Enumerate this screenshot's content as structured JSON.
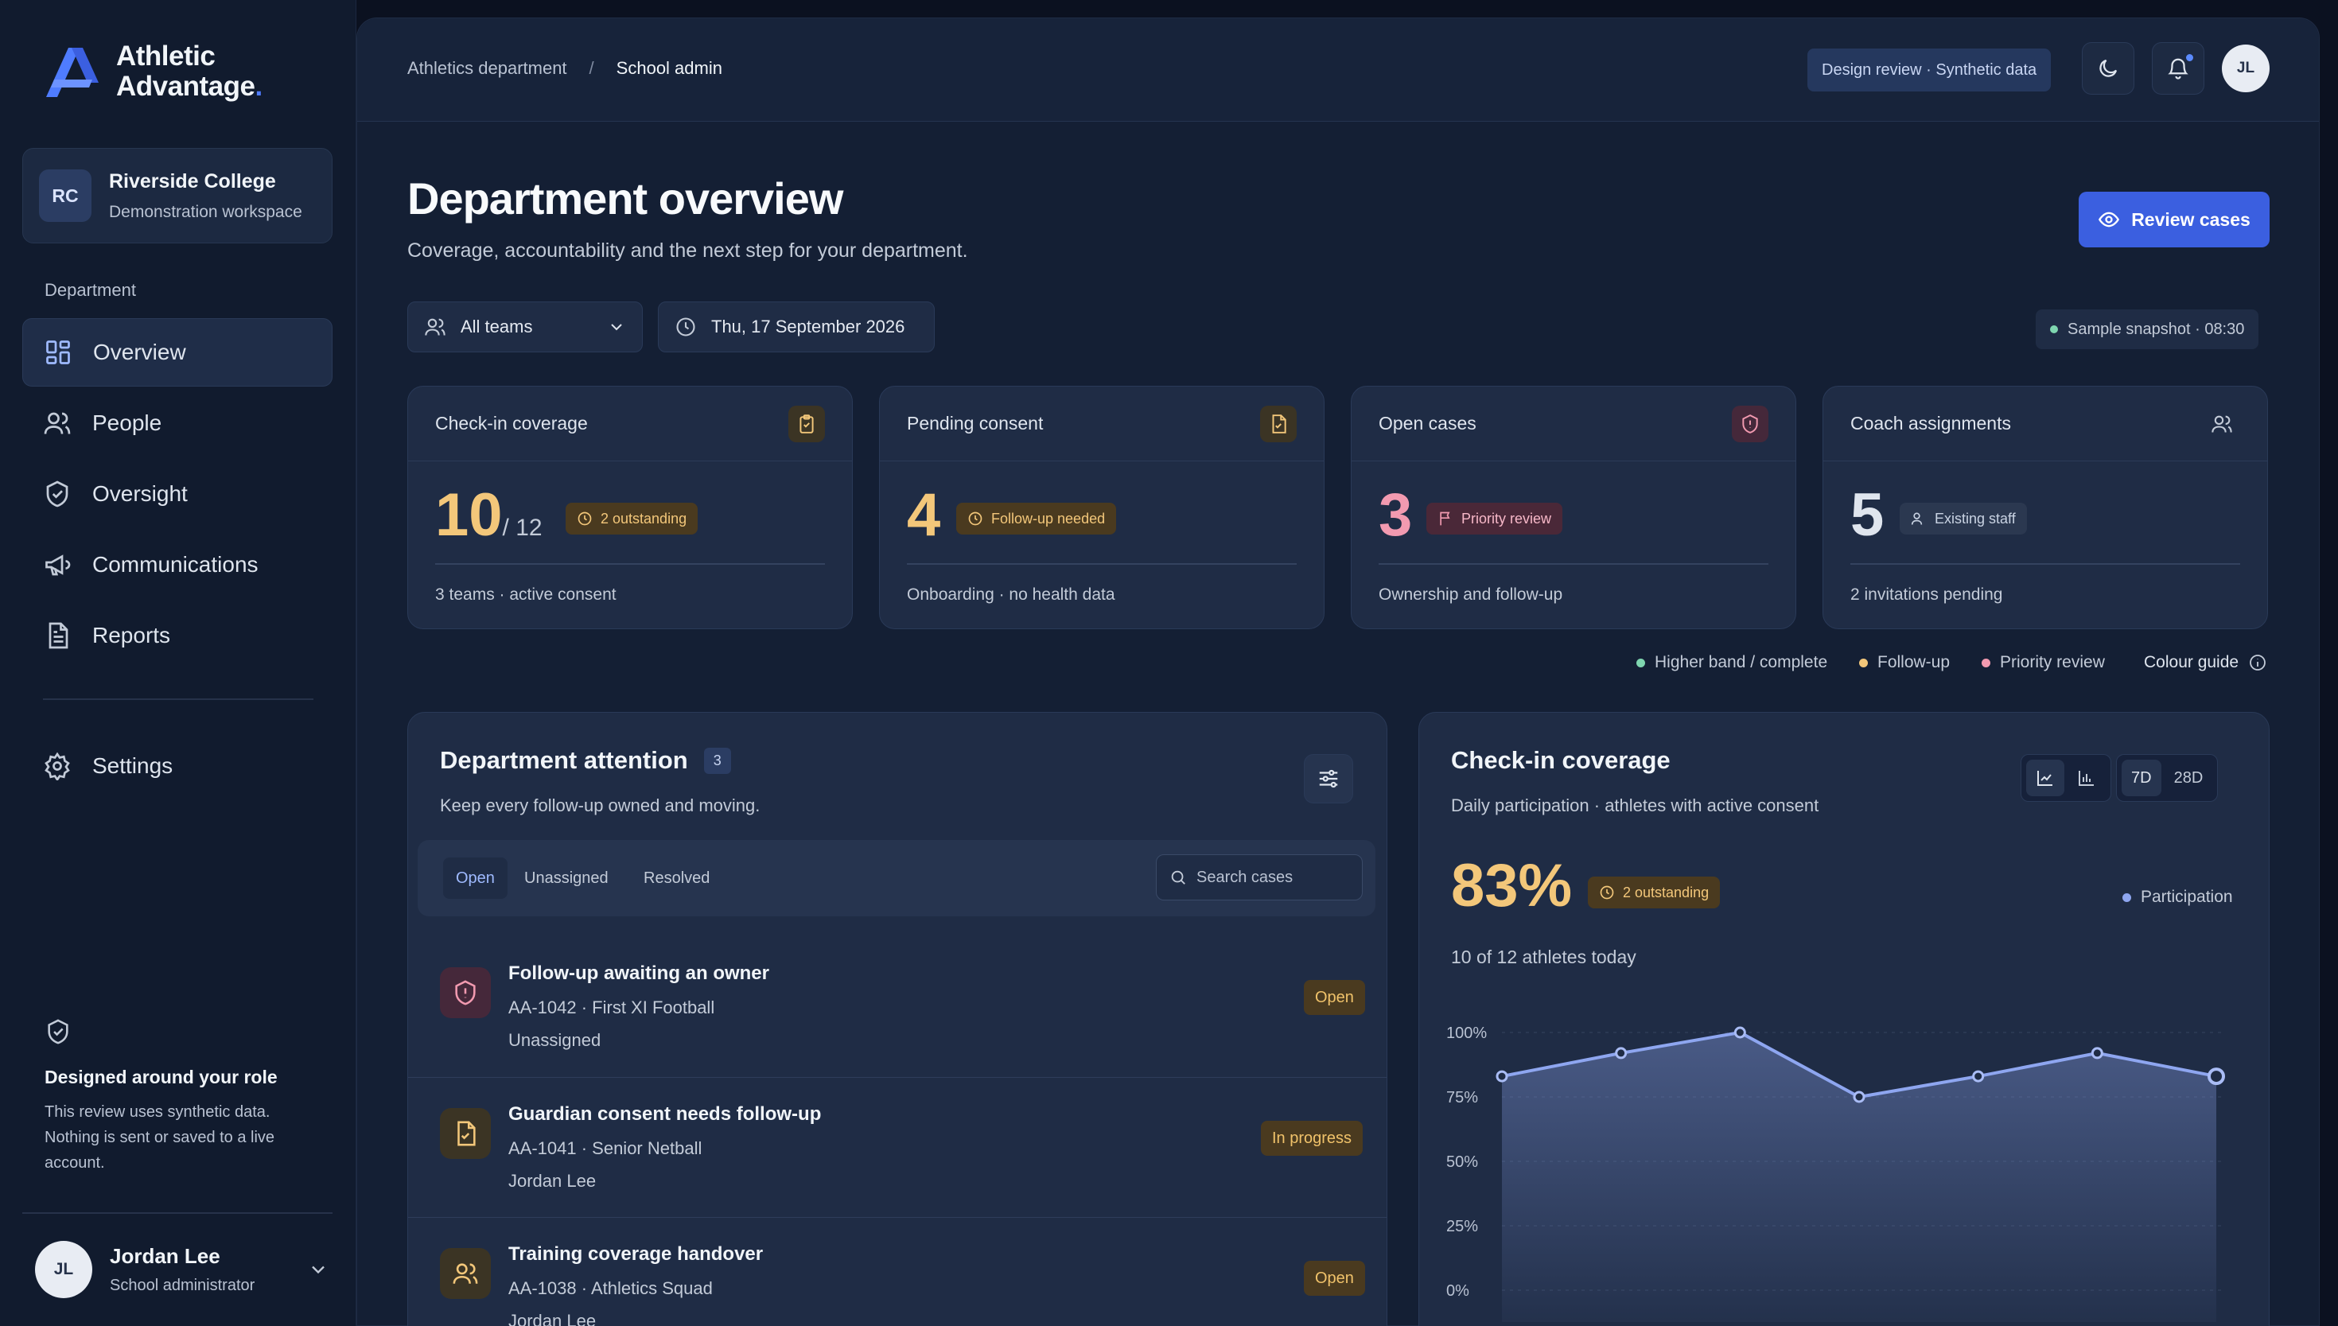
{
  "brand": {
    "line1": "Athletic",
    "line2": "Advantage",
    "dot": "."
  },
  "workspace": {
    "initials": "RC",
    "name": "Riverside College",
    "subtitle": "Demonstration workspace"
  },
  "sidebar": {
    "section_label": "Department",
    "items": [
      {
        "label": "Overview",
        "icon": "grid-icon",
        "active": true
      },
      {
        "label": "People",
        "icon": "users-icon"
      },
      {
        "label": "Oversight",
        "icon": "shield-check-icon"
      },
      {
        "label": "Communications",
        "icon": "megaphone-icon"
      },
      {
        "label": "Reports",
        "icon": "document-icon"
      }
    ],
    "settings_label": "Settings",
    "role_title": "Designed around your role",
    "role_text": "This review uses synthetic data. Nothing is sent or saved to a live account.",
    "user": {
      "initials": "JL",
      "name": "Jordan Lee",
      "role": "School administrator"
    }
  },
  "topbar": {
    "crumb_parent": "Athletics department",
    "crumb_sep": "/",
    "crumb_current": "School admin",
    "design_pill": "Design review · Synthetic data",
    "avatar": "JL"
  },
  "header": {
    "title": "Department overview",
    "subtitle": "Coverage, accountability and the next step for your department.",
    "review_button": "Review cases"
  },
  "filters": {
    "team": "All teams",
    "date": "Thu, 17 September 2026",
    "snapshot": "Sample snapshot · 08:30"
  },
  "colors": {
    "accent": "#3b5fe0",
    "amber": "#f3c77a",
    "rose": "#f29ab0",
    "green": "#7fd6b0",
    "series": "#8ea6f0"
  },
  "kpis": [
    {
      "title": "Check-in coverage",
      "value": "10",
      "denominator": "/ 12",
      "badge": "2 outstanding",
      "footer": "3 teams · active consent",
      "icon": "clipboard-check-icon"
    },
    {
      "title": "Pending consent",
      "value": "4",
      "badge": "Follow-up needed",
      "footer": "Onboarding · no health data",
      "icon": "file-check-icon"
    },
    {
      "title": "Open cases",
      "value": "3",
      "badge": "Priority review",
      "footer": "Ownership and follow-up",
      "icon": "shield-alert-icon"
    },
    {
      "title": "Coach assignments",
      "value": "5",
      "badge": "Existing staff",
      "footer": "2 invitations pending",
      "icon": "users-icon"
    }
  ],
  "legend": {
    "complete": "Higher band / complete",
    "followup": "Follow-up",
    "priority": "Priority review",
    "guide": "Colour guide"
  },
  "attention": {
    "title": "Department attention",
    "count": "3",
    "subtitle": "Keep every follow-up owned and moving.",
    "tabs": [
      "Open",
      "Unassigned",
      "Resolved"
    ],
    "search_placeholder": "Search cases",
    "rows": [
      {
        "title": "Follow-up awaiting an owner",
        "id": "AA-1042 · First XI Football",
        "owner": "Unassigned",
        "status": "Open",
        "icon": "shield-alert-icon"
      },
      {
        "title": "Guardian consent needs follow-up",
        "id": "AA-1041 · Senior Netball",
        "owner": "Jordan Lee",
        "status": "In progress",
        "icon": "file-check-icon"
      },
      {
        "title": "Training coverage handover",
        "id": "AA-1038 · Athletics Squad",
        "owner": "Jordan Lee",
        "status": "Open",
        "icon": "users-icon"
      }
    ]
  },
  "coverage": {
    "title": "Check-in coverage",
    "subtitle": "Daily participation · athletes with active consent",
    "range_options": [
      "7D",
      "28D"
    ],
    "big_value": "83%",
    "badge": "2 outstanding",
    "detail": "10 of 12 athletes today",
    "series_label": "Participation"
  },
  "chart_data": {
    "type": "area",
    "series": [
      {
        "name": "Participation",
        "values": [
          83,
          92,
          100,
          75,
          83,
          92,
          83
        ]
      }
    ],
    "x": [
      1,
      2,
      3,
      4,
      5,
      6,
      7
    ],
    "ylim": [
      0,
      100
    ],
    "yticks": [
      "100%",
      "75%",
      "50%",
      "25%",
      "0%"
    ],
    "grid": true
  }
}
